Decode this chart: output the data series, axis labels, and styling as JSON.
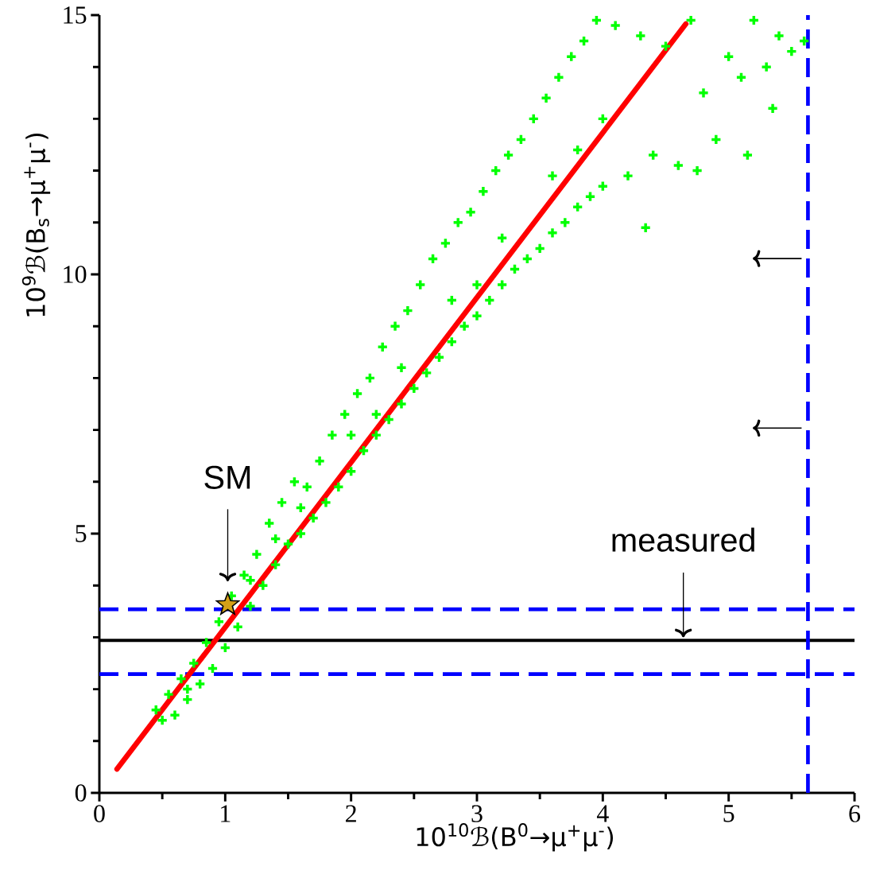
{
  "chart_data": {
    "type": "scatter",
    "xlabel": "10$^{10}$ℬ(B$^{0}$→μ$^{+}$μ$^{-}$)",
    "ylabel": "10$^{9}$ℬ(B$_{s}$→μ$^{+}$μ$^{-}$)",
    "xlim": [
      0,
      6
    ],
    "ylim": [
      0,
      15
    ],
    "xticks": [
      0,
      1,
      2,
      3,
      4,
      5,
      6
    ],
    "yticks": [
      0,
      5,
      10,
      15
    ],
    "grid": false,
    "series": [
      {
        "type": "scatter",
        "marker": "cross",
        "color": "#00ff00",
        "x": [
          0.45,
          0.5,
          0.55,
          0.6,
          0.65,
          0.7,
          0.75,
          0.8,
          0.85,
          0.9,
          0.95,
          1.0,
          1.05,
          1.1,
          1.15,
          1.2,
          1.25,
          1.3,
          1.35,
          1.4,
          1.45,
          1.5,
          1.55,
          1.6,
          1.65,
          1.7,
          1.75,
          1.8,
          1.85,
          1.9,
          1.95,
          2.0,
          2.05,
          2.1,
          2.15,
          2.2,
          2.25,
          2.3,
          2.35,
          2.4,
          2.45,
          2.5,
          2.55,
          2.6,
          2.65,
          2.7,
          2.75,
          2.8,
          2.85,
          2.9,
          2.95,
          3.0,
          3.05,
          3.1,
          3.15,
          3.2,
          3.25,
          3.3,
          3.35,
          3.4,
          3.45,
          3.5,
          3.55,
          3.6,
          3.65,
          3.7,
          3.75,
          3.8,
          3.85,
          3.9,
          3.95,
          4.0,
          4.1,
          4.2,
          4.3,
          4.34,
          4.4,
          4.5,
          4.6,
          4.7,
          4.75,
          4.8,
          4.9,
          5.0,
          5.1,
          5.15,
          5.2,
          5.3,
          5.35,
          5.4,
          5.5,
          5.6,
          1.2,
          1.6,
          2.0,
          2.4,
          2.8,
          3.2,
          3.6,
          4.0,
          0.7,
          1.4,
          2.2,
          3.0,
          3.8
        ],
        "values": [
          1.6,
          1.4,
          1.9,
          1.5,
          2.2,
          1.8,
          2.5,
          2.1,
          2.9,
          2.4,
          3.3,
          2.8,
          3.8,
          3.2,
          4.2,
          3.6,
          4.6,
          4.0,
          5.2,
          4.4,
          5.6,
          4.8,
          6.0,
          5.0,
          5.9,
          5.3,
          6.4,
          5.6,
          6.9,
          5.9,
          7.3,
          6.2,
          7.7,
          6.6,
          8.0,
          6.9,
          8.6,
          7.2,
          9.0,
          7.5,
          9.3,
          7.8,
          9.8,
          8.1,
          10.3,
          8.4,
          10.6,
          8.7,
          11.0,
          9.0,
          11.2,
          9.2,
          11.6,
          9.5,
          12.0,
          9.8,
          12.3,
          10.1,
          12.6,
          10.3,
          13.0,
          10.5,
          13.4,
          10.8,
          13.8,
          11.0,
          14.2,
          11.3,
          14.5,
          11.5,
          14.9,
          11.7,
          14.8,
          11.9,
          14.6,
          10.9,
          12.3,
          14.4,
          12.1,
          14.9,
          12.0,
          13.5,
          12.6,
          14.2,
          13.8,
          12.3,
          14.9,
          14.0,
          13.2,
          14.6,
          14.3,
          14.5,
          4.1,
          5.5,
          6.9,
          8.2,
          9.5,
          10.7,
          11.9,
          13.0,
          2.0,
          4.9,
          7.3,
          9.8,
          12.4
        ]
      },
      {
        "type": "line",
        "marker": "none",
        "color": "#ff0000",
        "x": [
          0.14,
          4.66
        ],
        "values": [
          0.46,
          14.83
        ]
      },
      {
        "type": "scatter",
        "marker": "star",
        "color": "#d4a017",
        "x": [
          1.02
        ],
        "values": [
          3.63
        ]
      }
    ],
    "ref_lines": [
      {
        "axis": "y",
        "value": 2.94,
        "color": "#000000",
        "line_style": "solid"
      },
      {
        "axis": "y",
        "value": 3.54,
        "color": "#0000ff",
        "line_style": "dashed"
      },
      {
        "axis": "y",
        "value": 2.29,
        "color": "#0000ff",
        "line_style": "dashed"
      },
      {
        "axis": "x",
        "value": 5.63,
        "color": "#0000ff",
        "line_style": "dashed"
      }
    ],
    "annotations": [
      "SM",
      {
        "text": "measured",
        "x": 4.64,
        "y": 2.94
      }
    ]
  }
}
